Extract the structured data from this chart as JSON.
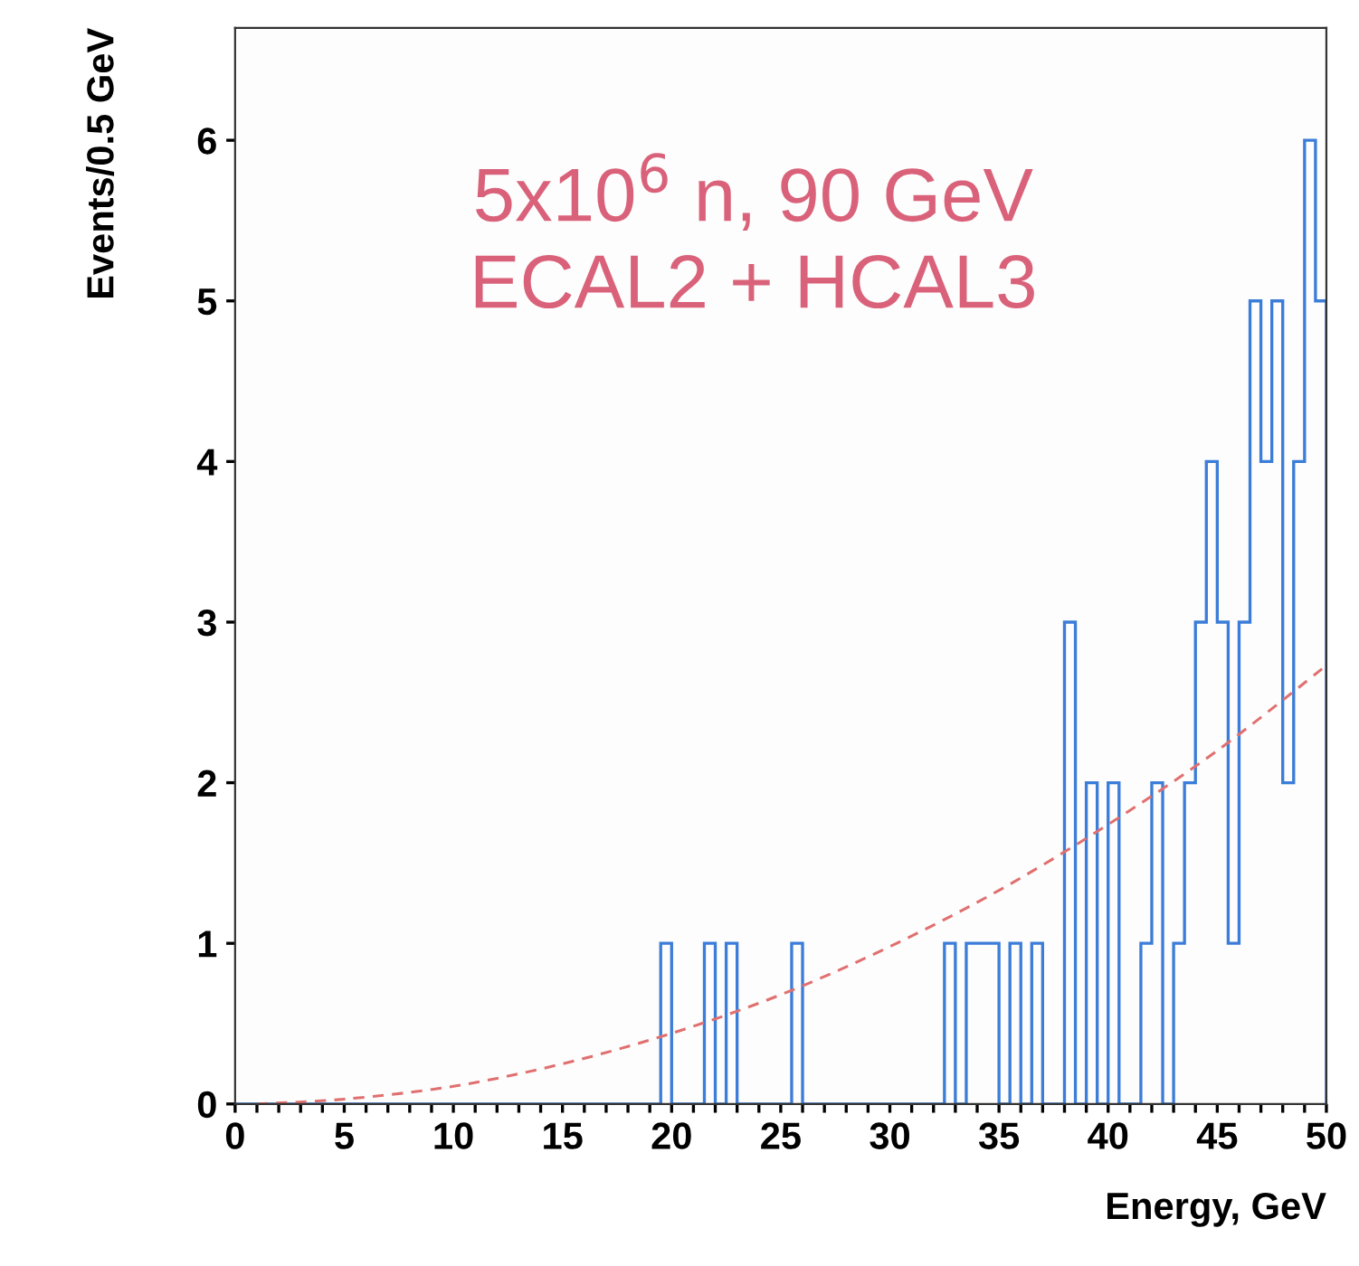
{
  "chart_data": {
    "type": "histogram",
    "xlabel": "Energy, GeV",
    "ylabel": "Events/0.5 GeV",
    "annotations": [
      "5x10$^{6}$ n, 90 GeV",
      "ECAL2 + HCAL3"
    ],
    "bins": [
      0,
      0.5,
      1,
      1.5,
      2,
      2.5,
      3,
      3.5,
      4,
      4.5,
      5,
      5.5,
      6,
      6.5,
      7,
      7.5,
      8,
      8.5,
      9,
      9.5,
      10,
      10.5,
      11,
      11.5,
      12,
      12.5,
      13,
      13.5,
      14,
      14.5,
      15,
      15.5,
      16,
      16.5,
      17,
      17.5,
      18,
      18.5,
      19,
      19.5,
      20,
      20.5,
      21,
      21.5,
      22,
      22.5,
      23,
      23.5,
      24,
      24.5,
      25,
      25.5,
      26,
      26.5,
      27,
      27.5,
      28,
      28.5,
      29,
      29.5,
      30,
      30.5,
      31,
      31.5,
      32,
      32.5,
      33,
      33.5,
      34,
      34.5,
      35,
      35.5,
      36,
      36.5,
      37,
      37.5,
      38,
      38.5,
      39,
      39.5,
      40,
      40.5,
      41,
      41.5,
      42,
      42.5,
      43,
      43.5,
      44,
      44.5,
      45,
      45.5,
      46,
      46.5,
      47,
      47.5,
      48,
      48.5,
      49,
      49.5,
      50
    ],
    "series": [
      {
        "color": "#3b7dd8",
        "values": [
          0,
          0,
          0,
          0,
          0,
          0,
          0,
          0,
          0,
          0,
          0,
          0,
          0,
          0,
          0,
          0,
          0,
          0,
          0,
          0,
          0,
          0,
          0,
          0,
          0,
          0,
          0,
          0,
          0,
          0,
          0,
          0,
          0,
          0,
          0,
          0,
          0,
          0,
          0,
          1,
          0,
          0,
          0,
          1,
          0,
          1,
          0,
          0,
          0,
          0,
          0,
          1,
          0,
          0,
          0,
          0,
          0,
          0,
          0,
          0,
          0,
          0,
          0,
          0,
          0,
          1,
          0,
          1,
          1,
          1,
          0,
          1,
          0,
          1,
          0,
          0,
          3,
          0,
          2,
          0,
          2,
          0,
          0,
          1,
          2,
          0,
          1,
          2,
          3,
          4,
          3,
          1,
          3,
          5,
          4,
          5,
          2,
          4,
          6,
          5
        ]
      },
      {
        "type": "line",
        "color": "#e07070",
        "line_style": "dashed",
        "x": [
          1,
          5,
          10,
          15,
          20,
          25,
          30,
          35,
          40,
          45,
          50
        ],
        "values": [
          0,
          0.03,
          0.11,
          0.25,
          0.44,
          0.68,
          0.98,
          1.33,
          1.74,
          2.2,
          2.73
        ]
      }
    ],
    "xlim": [
      0,
      50
    ],
    "ylim": [
      0,
      6.7
    ],
    "xticks": [
      0,
      {
        "value": 1,
        "label": null
      },
      {
        "value": 2,
        "label": null
      },
      {
        "value": 3,
        "label": null
      },
      {
        "value": 4,
        "label": null
      },
      5,
      {
        "value": 6,
        "label": null
      },
      {
        "value": 7,
        "label": null
      },
      {
        "value": 8,
        "label": null
      },
      {
        "value": 9,
        "label": null
      },
      10,
      {
        "value": 11,
        "label": null
      },
      {
        "value": 12,
        "label": null
      },
      {
        "value": 13,
        "label": null
      },
      {
        "value": 14,
        "label": null
      },
      15,
      {
        "value": 16,
        "label": null
      },
      {
        "value": 17,
        "label": null
      },
      {
        "value": 18,
        "label": null
      },
      {
        "value": 19,
        "label": null
      },
      20,
      {
        "value": 21,
        "label": null
      },
      {
        "value": 22,
        "label": null
      },
      {
        "value": 23,
        "label": null
      },
      {
        "value": 24,
        "label": null
      },
      25,
      {
        "value": 26,
        "label": null
      },
      {
        "value": 27,
        "label": null
      },
      {
        "value": 28,
        "label": null
      },
      {
        "value": 29,
        "label": null
      },
      30,
      {
        "value": 31,
        "label": null
      },
      {
        "value": 32,
        "label": null
      },
      {
        "value": 33,
        "label": null
      },
      {
        "value": 34,
        "label": null
      },
      35,
      {
        "value": 36,
        "label": null
      },
      {
        "value": 37,
        "label": null
      },
      {
        "value": 38,
        "label": null
      },
      {
        "value": 39,
        "label": null
      },
      40,
      {
        "value": 41,
        "label": null
      },
      {
        "value": 42,
        "label": null
      },
      {
        "value": 43,
        "label": null
      },
      {
        "value": 44,
        "label": null
      },
      45,
      {
        "value": 46,
        "label": null
      },
      {
        "value": 47,
        "label": null
      },
      {
        "value": 48,
        "label": null
      },
      {
        "value": 49,
        "label": null
      },
      50
    ],
    "yticks": [
      0,
      1,
      2,
      3,
      4,
      5,
      6
    ],
    "grid": false
  }
}
